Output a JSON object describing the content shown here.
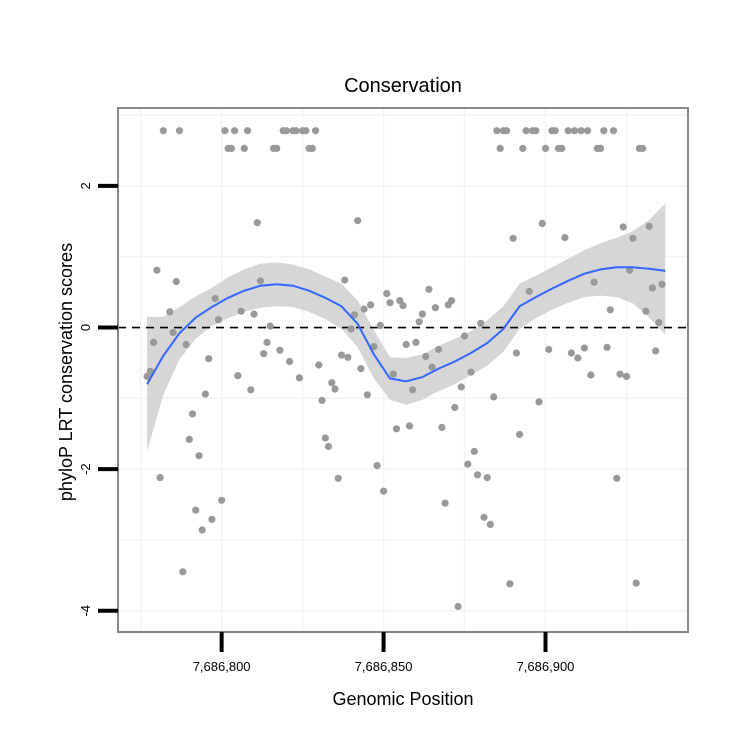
{
  "chart_data": {
    "type": "scatter",
    "title": "Conservation",
    "xlabel": "Genomic Position",
    "ylabel": "phyloP LRT conservation scores",
    "xlim": [
      7686768,
      7686944
    ],
    "ylim": [
      -4.3,
      3.1
    ],
    "x_ticks": [
      7686800,
      7686850,
      7686900
    ],
    "x_tick_labels": [
      "7,686,800",
      "7,686,850",
      "7,686,900"
    ],
    "y_ticks": [
      -4,
      -2,
      0,
      2
    ],
    "y_tick_labels": [
      "-4",
      "-2",
      "0",
      "2"
    ],
    "grid": true,
    "reference_line": {
      "y": 0,
      "style": "dashed",
      "color": "#000000"
    },
    "colors": {
      "points": "#999999",
      "smooth": "#3366ff",
      "band": "#d4d4d4",
      "frame": "#888888",
      "grid": "#f3f3f3"
    },
    "points": [
      [
        7686777,
        -0.69
      ],
      [
        7686778,
        -0.62
      ],
      [
        7686779,
        -0.21
      ],
      [
        7686780,
        0.81
      ],
      [
        7686781,
        -2.12
      ],
      [
        7686782,
        2.78
      ],
      [
        7686784,
        0.22
      ],
      [
        7686785,
        -0.07
      ],
      [
        7686786,
        0.65
      ],
      [
        7686787,
        2.78
      ],
      [
        7686788,
        -3.45
      ],
      [
        7686789,
        -0.24
      ],
      [
        7686790,
        -1.58
      ],
      [
        7686791,
        -1.22
      ],
      [
        7686792,
        -2.58
      ],
      [
        7686793,
        -1.81
      ],
      [
        7686794,
        -2.86
      ],
      [
        7686795,
        -0.94
      ],
      [
        7686796,
        -0.44
      ],
      [
        7686797,
        -2.71
      ],
      [
        7686798,
        0.41
      ],
      [
        7686799,
        0.11
      ],
      [
        7686800,
        -2.44
      ],
      [
        7686801,
        2.78
      ],
      [
        7686802,
        2.53
      ],
      [
        7686803,
        2.53
      ],
      [
        7686804,
        2.78
      ],
      [
        7686805,
        -0.68
      ],
      [
        7686806,
        0.23
      ],
      [
        7686807,
        2.53
      ],
      [
        7686808,
        2.78
      ],
      [
        7686809,
        -0.88
      ],
      [
        7686810,
        0.19
      ],
      [
        7686811,
        1.48
      ],
      [
        7686812,
        0.66
      ],
      [
        7686813,
        -0.37
      ],
      [
        7686814,
        -0.21
      ],
      [
        7686815,
        0.02
      ],
      [
        7686816,
        2.53
      ],
      [
        7686817,
        2.53
      ],
      [
        7686818,
        -0.32
      ],
      [
        7686819,
        2.78
      ],
      [
        7686820,
        2.78
      ],
      [
        7686821,
        -0.48
      ],
      [
        7686822,
        2.78
      ],
      [
        7686823,
        2.78
      ],
      [
        7686824,
        -0.71
      ],
      [
        7686825,
        2.78
      ],
      [
        7686826,
        2.78
      ],
      [
        7686827,
        2.53
      ],
      [
        7686828,
        2.53
      ],
      [
        7686829,
        2.78
      ],
      [
        7686830,
        -0.53
      ],
      [
        7686831,
        -1.03
      ],
      [
        7686832,
        -1.56
      ],
      [
        7686833,
        -1.68
      ],
      [
        7686834,
        -0.78
      ],
      [
        7686835,
        -0.87
      ],
      [
        7686836,
        -2.13
      ],
      [
        7686837,
        -0.39
      ],
      [
        7686838,
        0.67
      ],
      [
        7686839,
        -0.42
      ],
      [
        7686840,
        -0.02
      ],
      [
        7686841,
        0.18
      ],
      [
        7686842,
        1.51
      ],
      [
        7686843,
        -0.58
      ],
      [
        7686844,
        0.26
      ],
      [
        7686845,
        -0.95
      ],
      [
        7686846,
        0.32
      ],
      [
        7686847,
        -0.27
      ],
      [
        7686848,
        -1.95
      ],
      [
        7686849,
        0.03
      ],
      [
        7686850,
        -2.31
      ],
      [
        7686851,
        0.48
      ],
      [
        7686852,
        0.35
      ],
      [
        7686853,
        -0.66
      ],
      [
        7686854,
        -1.43
      ],
      [
        7686855,
        0.38
      ],
      [
        7686856,
        0.31
      ],
      [
        7686857,
        -0.24
      ],
      [
        7686858,
        -1.39
      ],
      [
        7686859,
        -0.88
      ],
      [
        7686860,
        -0.21
      ],
      [
        7686861,
        0.08
      ],
      [
        7686862,
        0.19
      ],
      [
        7686863,
        -0.41
      ],
      [
        7686864,
        0.54
      ],
      [
        7686865,
        -0.56
      ],
      [
        7686866,
        0.28
      ],
      [
        7686867,
        -0.31
      ],
      [
        7686868,
        -1.41
      ],
      [
        7686869,
        -2.48
      ],
      [
        7686870,
        0.32
      ],
      [
        7686871,
        0.38
      ],
      [
        7686872,
        -1.13
      ],
      [
        7686873,
        -3.94
      ],
      [
        7686874,
        -0.84
      ],
      [
        7686875,
        -0.12
      ],
      [
        7686876,
        -1.93
      ],
      [
        7686877,
        -0.63
      ],
      [
        7686878,
        -1.75
      ],
      [
        7686879,
        -2.08
      ],
      [
        7686880,
        0.06
      ],
      [
        7686881,
        -2.68
      ],
      [
        7686882,
        -2.12
      ],
      [
        7686883,
        -2.78
      ],
      [
        7686884,
        -0.98
      ],
      [
        7686885,
        2.78
      ],
      [
        7686886,
        2.53
      ],
      [
        7686887,
        2.78
      ],
      [
        7686888,
        2.78
      ],
      [
        7686889,
        -3.62
      ],
      [
        7686890,
        1.26
      ],
      [
        7686891,
        -0.36
      ],
      [
        7686892,
        -1.51
      ],
      [
        7686893,
        2.53
      ],
      [
        7686894,
        2.78
      ],
      [
        7686895,
        0.51
      ],
      [
        7686896,
        2.78
      ],
      [
        7686897,
        2.78
      ],
      [
        7686898,
        -1.05
      ],
      [
        7686899,
        1.47
      ],
      [
        7686900,
        2.53
      ],
      [
        7686901,
        -0.31
      ],
      [
        7686902,
        2.78
      ],
      [
        7686903,
        2.78
      ],
      [
        7686904,
        2.53
      ],
      [
        7686905,
        2.53
      ],
      [
        7686906,
        1.27
      ],
      [
        7686907,
        2.78
      ],
      [
        7686908,
        -0.36
      ],
      [
        7686909,
        2.78
      ],
      [
        7686910,
        -0.43
      ],
      [
        7686911,
        2.78
      ],
      [
        7686912,
        -0.29
      ],
      [
        7686913,
        2.78
      ],
      [
        7686914,
        -0.67
      ],
      [
        7686915,
        0.64
      ],
      [
        7686916,
        2.53
      ],
      [
        7686917,
        2.53
      ],
      [
        7686918,
        2.78
      ],
      [
        7686919,
        -0.28
      ],
      [
        7686920,
        0.25
      ],
      [
        7686921,
        2.78
      ],
      [
        7686922,
        -2.13
      ],
      [
        7686923,
        -0.66
      ],
      [
        7686924,
        1.42
      ],
      [
        7686925,
        -0.69
      ],
      [
        7686926,
        0.81
      ],
      [
        7686927,
        1.26
      ],
      [
        7686928,
        -3.61
      ],
      [
        7686929,
        2.53
      ],
      [
        7686930,
        2.53
      ],
      [
        7686931,
        0.23
      ],
      [
        7686932,
        1.43
      ],
      [
        7686933,
        0.56
      ],
      [
        7686934,
        -0.33
      ],
      [
        7686935,
        0.07
      ],
      [
        7686936,
        0.61
      ]
    ],
    "smooth": {
      "x": [
        7686777,
        7686782,
        7686787,
        7686792,
        7686797,
        7686802,
        7686807,
        7686812,
        7686817,
        7686822,
        7686827,
        7686832,
        7686837,
        7686842,
        7686847,
        7686852,
        7686857,
        7686862,
        7686867,
        7686872,
        7686877,
        7686882,
        7686887,
        7686892,
        7686897,
        7686902,
        7686907,
        7686912,
        7686917,
        7686922,
        7686927,
        7686932,
        7686937
      ],
      "y": [
        -0.8,
        -0.4,
        -0.08,
        0.14,
        0.29,
        0.42,
        0.52,
        0.59,
        0.61,
        0.59,
        0.52,
        0.42,
        0.3,
        0.05,
        -0.38,
        -0.72,
        -0.76,
        -0.7,
        -0.58,
        -0.48,
        -0.36,
        -0.22,
        -0.02,
        0.3,
        0.43,
        0.55,
        0.66,
        0.76,
        0.82,
        0.85,
        0.85,
        0.83,
        0.8
      ],
      "lower": [
        -1.75,
        -0.95,
        -0.45,
        -0.16,
        0.02,
        0.13,
        0.22,
        0.28,
        0.3,
        0.29,
        0.22,
        0.12,
        -0.02,
        -0.28,
        -0.72,
        -1.02,
        -1.09,
        -1.02,
        -0.9,
        -0.8,
        -0.67,
        -0.54,
        -0.34,
        -0.02,
        0.13,
        0.25,
        0.35,
        0.43,
        0.45,
        0.43,
        0.34,
        0.14,
        -0.1
      ],
      "upper": [
        0.15,
        0.15,
        0.29,
        0.44,
        0.56,
        0.71,
        0.82,
        0.9,
        0.92,
        0.89,
        0.82,
        0.72,
        0.62,
        0.38,
        -0.04,
        -0.42,
        -0.43,
        -0.38,
        -0.26,
        -0.16,
        -0.05,
        0.1,
        0.3,
        0.62,
        0.73,
        0.85,
        0.97,
        1.09,
        1.19,
        1.27,
        1.36,
        1.52,
        1.75
      ]
    }
  }
}
